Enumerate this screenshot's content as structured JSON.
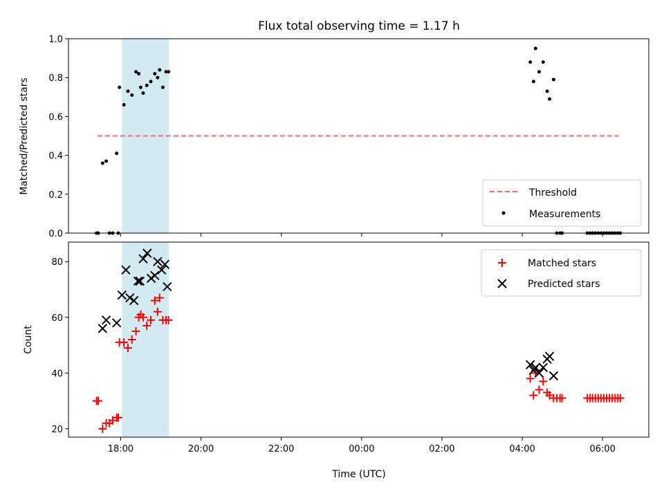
{
  "chart_data": [
    {
      "type": "scatter",
      "title": "Flux total observing time = 1.17 h",
      "xlabel": "",
      "ylabel": "Matched/Predicted stars",
      "x_unit": "hours since 00:00 UTC",
      "xlim": [
        -7.3,
        7.15
      ],
      "ylim": [
        0.0,
        1.0
      ],
      "xticks": [
        {
          "value": -6,
          "label": "18:00"
        },
        {
          "value": -4,
          "label": "20:00"
        },
        {
          "value": -2,
          "label": "22:00"
        },
        {
          "value": 0,
          "label": "00:00"
        },
        {
          "value": 2,
          "label": "02:00"
        },
        {
          "value": 4,
          "label": "04:00"
        },
        {
          "value": 6,
          "label": "06:00"
        }
      ],
      "yticks": [
        "0.0",
        "0.2",
        "0.4",
        "0.6",
        "0.8",
        "1.0"
      ],
      "highlight_span": {
        "x0": -5.97,
        "x1": -4.8,
        "color": "#add8e6"
      },
      "threshold": {
        "label": "Threshold",
        "y": 0.5,
        "x0": -6.58,
        "x1": 6.4,
        "color": "#ff6666"
      },
      "legend": {
        "position": "lower right",
        "entries": [
          "Threshold",
          "Measurements"
        ]
      },
      "series": [
        {
          "name": "Measurements",
          "color": "#000000",
          "marker": "dot",
          "x": [
            -6.6,
            -6.56,
            -6.45,
            -6.36,
            -6.28,
            -6.2,
            -6.1,
            -6.06,
            -6.03,
            -5.92,
            -5.82,
            -5.72,
            -5.62,
            -5.55,
            -5.5,
            -5.44,
            -5.35,
            -5.25,
            -5.15,
            -5.08,
            -5.03,
            -4.95,
            -4.87,
            -4.81,
            4.2,
            4.28,
            4.33,
            4.42,
            4.52,
            4.62,
            4.68,
            4.78,
            4.86,
            4.94,
            4.99,
            5.62,
            5.69,
            5.75,
            5.82,
            5.89,
            5.96,
            6.03,
            6.1,
            6.17,
            6.24,
            6.31,
            6.38,
            6.44
          ],
          "y": [
            0.0,
            0.0,
            0.36,
            0.37,
            0.0,
            0.0,
            0.41,
            0.0,
            0.75,
            0.66,
            0.73,
            0.71,
            0.83,
            0.82,
            0.75,
            0.72,
            0.76,
            0.78,
            0.82,
            0.8,
            0.84,
            0.75,
            0.83,
            0.83,
            0.88,
            0.78,
            0.95,
            0.83,
            0.88,
            0.73,
            0.69,
            0.79,
            0.0,
            0.0,
            0.0,
            0.0,
            0.0,
            0.0,
            0.0,
            0.0,
            0.0,
            0.0,
            0.0,
            0.0,
            0.0,
            0.0,
            0.0,
            0.0
          ]
        }
      ]
    },
    {
      "type": "scatter",
      "title": "",
      "xlabel": "Time (UTC)",
      "ylabel": "Count",
      "x_unit": "hours since 00:00 UTC",
      "xlim": [
        -7.3,
        7.15
      ],
      "ylim": [
        17,
        87
      ],
      "xticks": [
        {
          "value": -6,
          "label": "18:00"
        },
        {
          "value": -4,
          "label": "20:00"
        },
        {
          "value": -2,
          "label": "22:00"
        },
        {
          "value": 0,
          "label": "00:00"
        },
        {
          "value": 2,
          "label": "02:00"
        },
        {
          "value": 4,
          "label": "04:00"
        },
        {
          "value": 6,
          "label": "06:00"
        }
      ],
      "yticks": [
        "20",
        "40",
        "60",
        "80"
      ],
      "highlight_span": {
        "x0": -5.97,
        "x1": -4.8,
        "color": "#add8e6"
      },
      "legend": {
        "position": "upper right",
        "entries": [
          "Matched stars",
          "Predicted stars"
        ]
      },
      "series": [
        {
          "name": "Matched stars",
          "color": "#ff0000",
          "marker": "plus",
          "x": [
            -6.6,
            -6.56,
            -6.45,
            -6.36,
            -6.28,
            -6.2,
            -6.1,
            -6.06,
            -6.03,
            -5.92,
            -5.82,
            -5.72,
            -5.62,
            -5.55,
            -5.5,
            -5.44,
            -5.35,
            -5.25,
            -5.15,
            -5.08,
            -5.03,
            -4.95,
            -4.87,
            -4.81,
            4.2,
            4.28,
            4.33,
            4.42,
            4.52,
            4.62,
            4.68,
            4.78,
            4.86,
            4.94,
            4.99,
            5.62,
            5.69,
            5.75,
            5.82,
            5.89,
            5.96,
            6.03,
            6.1,
            6.17,
            6.24,
            6.31,
            6.38,
            6.44
          ],
          "y": [
            30,
            30,
            20,
            22,
            22,
            23,
            24,
            24,
            51,
            51,
            49,
            52,
            55,
            60,
            61,
            60,
            57,
            59,
            66,
            62,
            67,
            59,
            59,
            59,
            38,
            32,
            40,
            34,
            37,
            33,
            32,
            31,
            31,
            31,
            31,
            31,
            31,
            31,
            31,
            31,
            31,
            31,
            31,
            31,
            31,
            31,
            31,
            31
          ]
        },
        {
          "name": "Predicted stars",
          "color": "#000000",
          "marker": "x",
          "x": [
            -6.45,
            -6.36,
            -6.1,
            -5.97,
            -5.87,
            -5.77,
            -5.67,
            -5.57,
            -5.52,
            -5.44,
            -5.34,
            -5.24,
            -5.15,
            -5.08,
            -4.98,
            -4.9,
            -4.84,
            4.2,
            4.28,
            4.33,
            4.42,
            4.52,
            4.62,
            4.68,
            4.78
          ],
          "y": [
            56,
            59,
            58,
            68,
            77,
            67,
            66,
            73,
            73,
            81,
            83,
            74,
            75,
            80,
            77,
            79,
            71,
            43,
            41,
            42,
            40,
            42,
            45,
            46,
            39
          ]
        }
      ]
    }
  ]
}
